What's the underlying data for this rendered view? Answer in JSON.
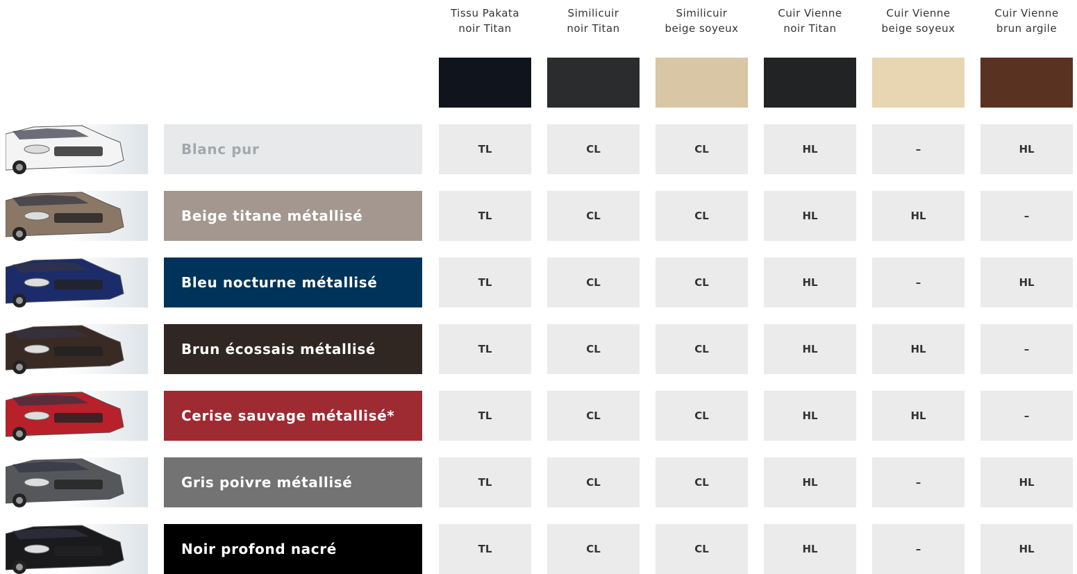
{
  "columns": [
    {
      "lines": [
        "Tissu Pakata",
        "noir Titan"
      ],
      "swatch": "#10141c"
    },
    {
      "lines": [
        "Similicuir",
        "noir Titan"
      ],
      "swatch": "#2a2c2e"
    },
    {
      "lines": [
        "Similicuir",
        "beige soyeux"
      ],
      "swatch": "#d8c6a4"
    },
    {
      "lines": [
        "Cuir Vienne",
        "noir Titan"
      ],
      "swatch": "#222324"
    },
    {
      "lines": [
        "Cuir Vienne",
        "beige soyeux"
      ],
      "swatch": "#e8d6b2"
    },
    {
      "lines": [
        "Cuir Vienne",
        "brun argile"
      ],
      "swatch": "#5a3222"
    }
  ],
  "rows": [
    {
      "name": "Blanc pur",
      "color": "#e8e9eb",
      "text_color": "#a3a8ad",
      "car_color": "#f4f4f4",
      "cells": [
        "TL",
        "CL",
        "CL",
        "HL",
        "–",
        "HL"
      ]
    },
    {
      "name": "Beige titane métallisé",
      "color": "#a39790",
      "text_color": "#ffffff",
      "car_color": "#8a7766",
      "cells": [
        "TL",
        "CL",
        "CL",
        "HL",
        "HL",
        "–"
      ]
    },
    {
      "name": "Bleu nocturne métallisé",
      "color": "#00335a",
      "text_color": "#ffffff",
      "car_color": "#1c2c6a",
      "cells": [
        "TL",
        "CL",
        "CL",
        "HL",
        "–",
        "HL"
      ]
    },
    {
      "name": "Brun écossais métallisé",
      "color": "#302622",
      "text_color": "#ffffff",
      "car_color": "#3a2a24",
      "cells": [
        "TL",
        "CL",
        "CL",
        "HL",
        "HL",
        "–"
      ]
    },
    {
      "name": "Cerise sauvage métallisé*",
      "color": "#9e2a32",
      "text_color": "#ffffff",
      "car_color": "#b8202a",
      "cells": [
        "TL",
        "CL",
        "CL",
        "HL",
        "HL",
        "–"
      ]
    },
    {
      "name": "Gris poivre métallisé",
      "color": "#737373",
      "text_color": "#ffffff",
      "car_color": "#55575a",
      "cells": [
        "TL",
        "CL",
        "CL",
        "HL",
        "–",
        "HL"
      ]
    },
    {
      "name": "Noir profond nacré",
      "color": "#000000",
      "text_color": "#ffffff",
      "car_color": "#1a1a1c",
      "cells": [
        "TL",
        "CL",
        "CL",
        "HL",
        "–",
        "HL"
      ]
    }
  ]
}
